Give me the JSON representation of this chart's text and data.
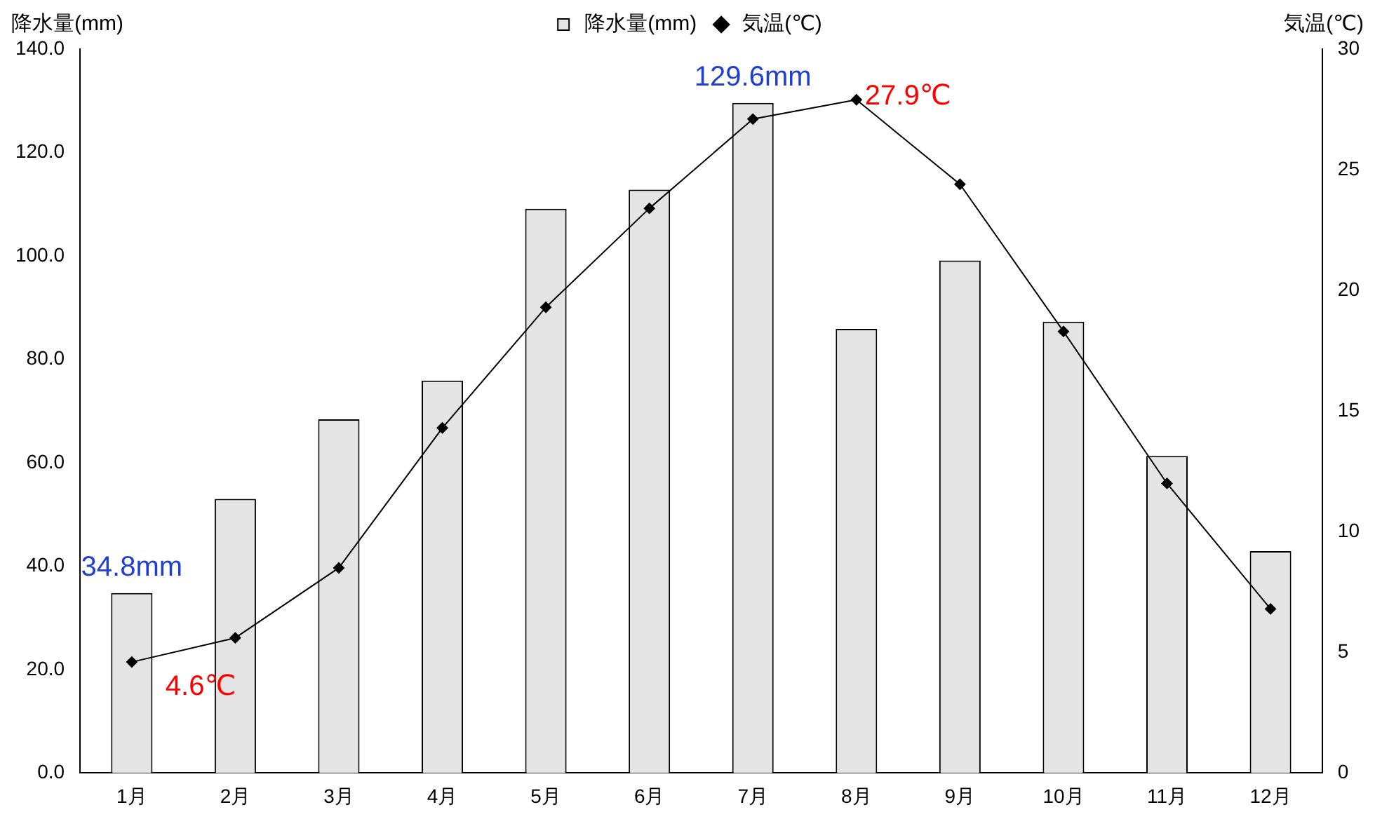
{
  "chart_data": {
    "type": "bar",
    "ylabel": "降水量(mm)",
    "y2label": "気温(℃)",
    "categories": [
      "1月",
      "2月",
      "3月",
      "4月",
      "5月",
      "6月",
      "7月",
      "8月",
      "9月",
      "10月",
      "11月",
      "12月"
    ],
    "series": [
      {
        "name": "降水量(mm)",
        "color": "#e4e4e4",
        "values": [
          34.8,
          53.0,
          68.4,
          75.9,
          109.1,
          112.8,
          129.6,
          85.9,
          99.1,
          87.3,
          61.3,
          42.9
        ],
        "value_labels": [
          "34.8mm",
          null,
          null,
          null,
          null,
          null,
          "129.6mm",
          null,
          null,
          null,
          null,
          null
        ]
      },
      {
        "name": "気温(℃)",
        "type": "line",
        "axis": "y2",
        "color": "#000000",
        "values": [
          4.6,
          5.6,
          8.5,
          14.3,
          19.3,
          23.4,
          27.1,
          27.9,
          24.4,
          18.3,
          12.0,
          6.8
        ],
        "value_labels": [
          "4.6℃",
          null,
          null,
          null,
          null,
          null,
          null,
          "27.9℃",
          null,
          null,
          null,
          null
        ]
      }
    ],
    "ylim": [
      0,
      140
    ],
    "yticks": [
      {
        "value": 0,
        "label": "0.0"
      },
      {
        "value": 20,
        "label": "20.0"
      },
      {
        "value": 40,
        "label": "40.0"
      },
      {
        "value": 60,
        "label": "60.0"
      },
      {
        "value": 80,
        "label": "80.0"
      },
      {
        "value": 100,
        "label": "100.0"
      },
      {
        "value": 120,
        "label": "120.0"
      },
      {
        "value": 140,
        "label": "140.0"
      }
    ],
    "y2lim": [
      0,
      30
    ],
    "y2ticks": [
      0,
      5,
      10,
      15,
      20,
      25,
      30
    ],
    "legend": "top",
    "grid": false,
    "marker": "diamond",
    "line_style": "solid"
  }
}
